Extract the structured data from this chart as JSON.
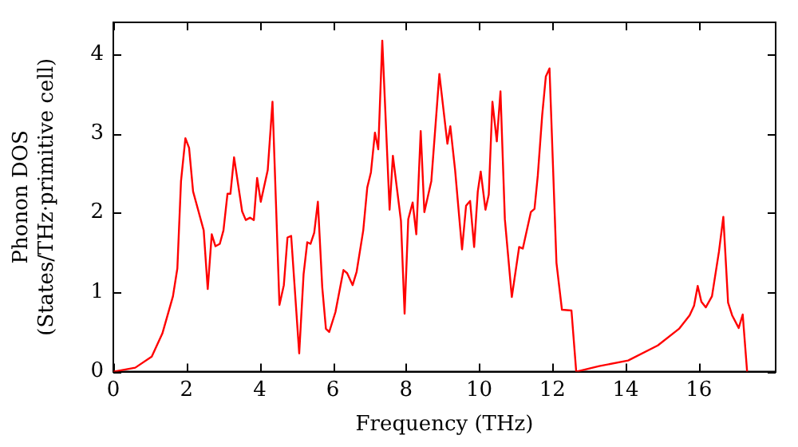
{
  "chart_data": {
    "type": "line",
    "xlabel": "Frequency (THz)",
    "ylabel": "Phonon DOS\n(States/THz·primitive cell)",
    "xlim": [
      0,
      18.1
    ],
    "ylim": [
      0,
      4.4
    ],
    "xticks": [
      0,
      2,
      4,
      6,
      8,
      10,
      12,
      14,
      16
    ],
    "yticks": [
      0,
      1,
      2,
      3,
      4
    ],
    "grid": false,
    "legend": false,
    "marker": "none",
    "line_style": "solid",
    "series": [
      {
        "color": "#ff0000",
        "x": [
          0,
          0.6,
          1.05,
          1.34,
          1.63,
          1.75,
          1.85,
          1.97,
          2.07,
          2.18,
          2.47,
          2.58,
          2.69,
          2.79,
          2.91,
          3.01,
          3.12,
          3.2,
          3.3,
          3.52,
          3.62,
          3.74,
          3.84,
          3.93,
          4.03,
          4.22,
          4.35,
          4.54,
          4.66,
          4.76,
          4.86,
          5.08,
          5.2,
          5.3,
          5.39,
          5.49,
          5.59,
          5.71,
          5.81,
          5.9,
          6.07,
          6.29,
          6.39,
          6.54,
          6.65,
          6.83,
          6.94,
          7.04,
          7.15,
          7.24,
          7.35,
          7.55,
          7.64,
          7.86,
          7.96,
          8.06,
          8.18,
          8.28,
          8.4,
          8.5,
          8.69,
          8.91,
          9.13,
          9.21,
          9.34,
          9.53,
          9.64,
          9.75,
          9.86,
          9.96,
          10.04,
          10.17,
          10.26,
          10.36,
          10.48,
          10.58,
          10.7,
          10.89,
          11.09,
          11.19,
          11.41,
          11.51,
          11.6,
          11.72,
          11.82,
          11.92,
          12.11,
          12.26,
          12.52,
          12.65,
          13.28,
          14.07,
          14.88,
          15.46,
          15.75,
          15.87,
          15.97,
          16.07,
          16.19,
          16.36,
          16.55,
          16.67,
          16.8,
          16.91,
          17.09,
          17.2,
          17.32
        ],
        "values": [
          0,
          0.05,
          0.19,
          0.48,
          0.95,
          1.3,
          2.4,
          2.94,
          2.82,
          2.27,
          1.78,
          1.04,
          1.73,
          1.58,
          1.61,
          1.78,
          2.24,
          2.24,
          2.7,
          2.02,
          1.91,
          1.94,
          1.91,
          2.44,
          2.14,
          2.54,
          3.4,
          0.84,
          1.09,
          1.69,
          1.71,
          0.23,
          1.23,
          1.63,
          1.61,
          1.75,
          2.14,
          1.06,
          0.54,
          0.5,
          0.75,
          1.28,
          1.24,
          1.09,
          1.26,
          1.78,
          2.32,
          2.51,
          3.01,
          2.8,
          4.17,
          2.04,
          2.72,
          1.9,
          0.73,
          1.92,
          2.13,
          1.73,
          3.03,
          2.01,
          2.4,
          3.75,
          2.87,
          3.09,
          2.54,
          1.54,
          2.09,
          2.15,
          1.57,
          2.27,
          2.52,
          2.04,
          2.23,
          3.4,
          2.9,
          3.53,
          1.92,
          0.94,
          1.57,
          1.55,
          2.01,
          2.05,
          2.47,
          3.23,
          3.72,
          3.82,
          1.37,
          0.78,
          0.77,
          0,
          0.07,
          0.14,
          0.33,
          0.54,
          0.71,
          0.83,
          1.08,
          0.88,
          0.81,
          0.95,
          1.51,
          1.95,
          0.87,
          0.71,
          0.55,
          0.72,
          0
        ]
      }
    ]
  }
}
